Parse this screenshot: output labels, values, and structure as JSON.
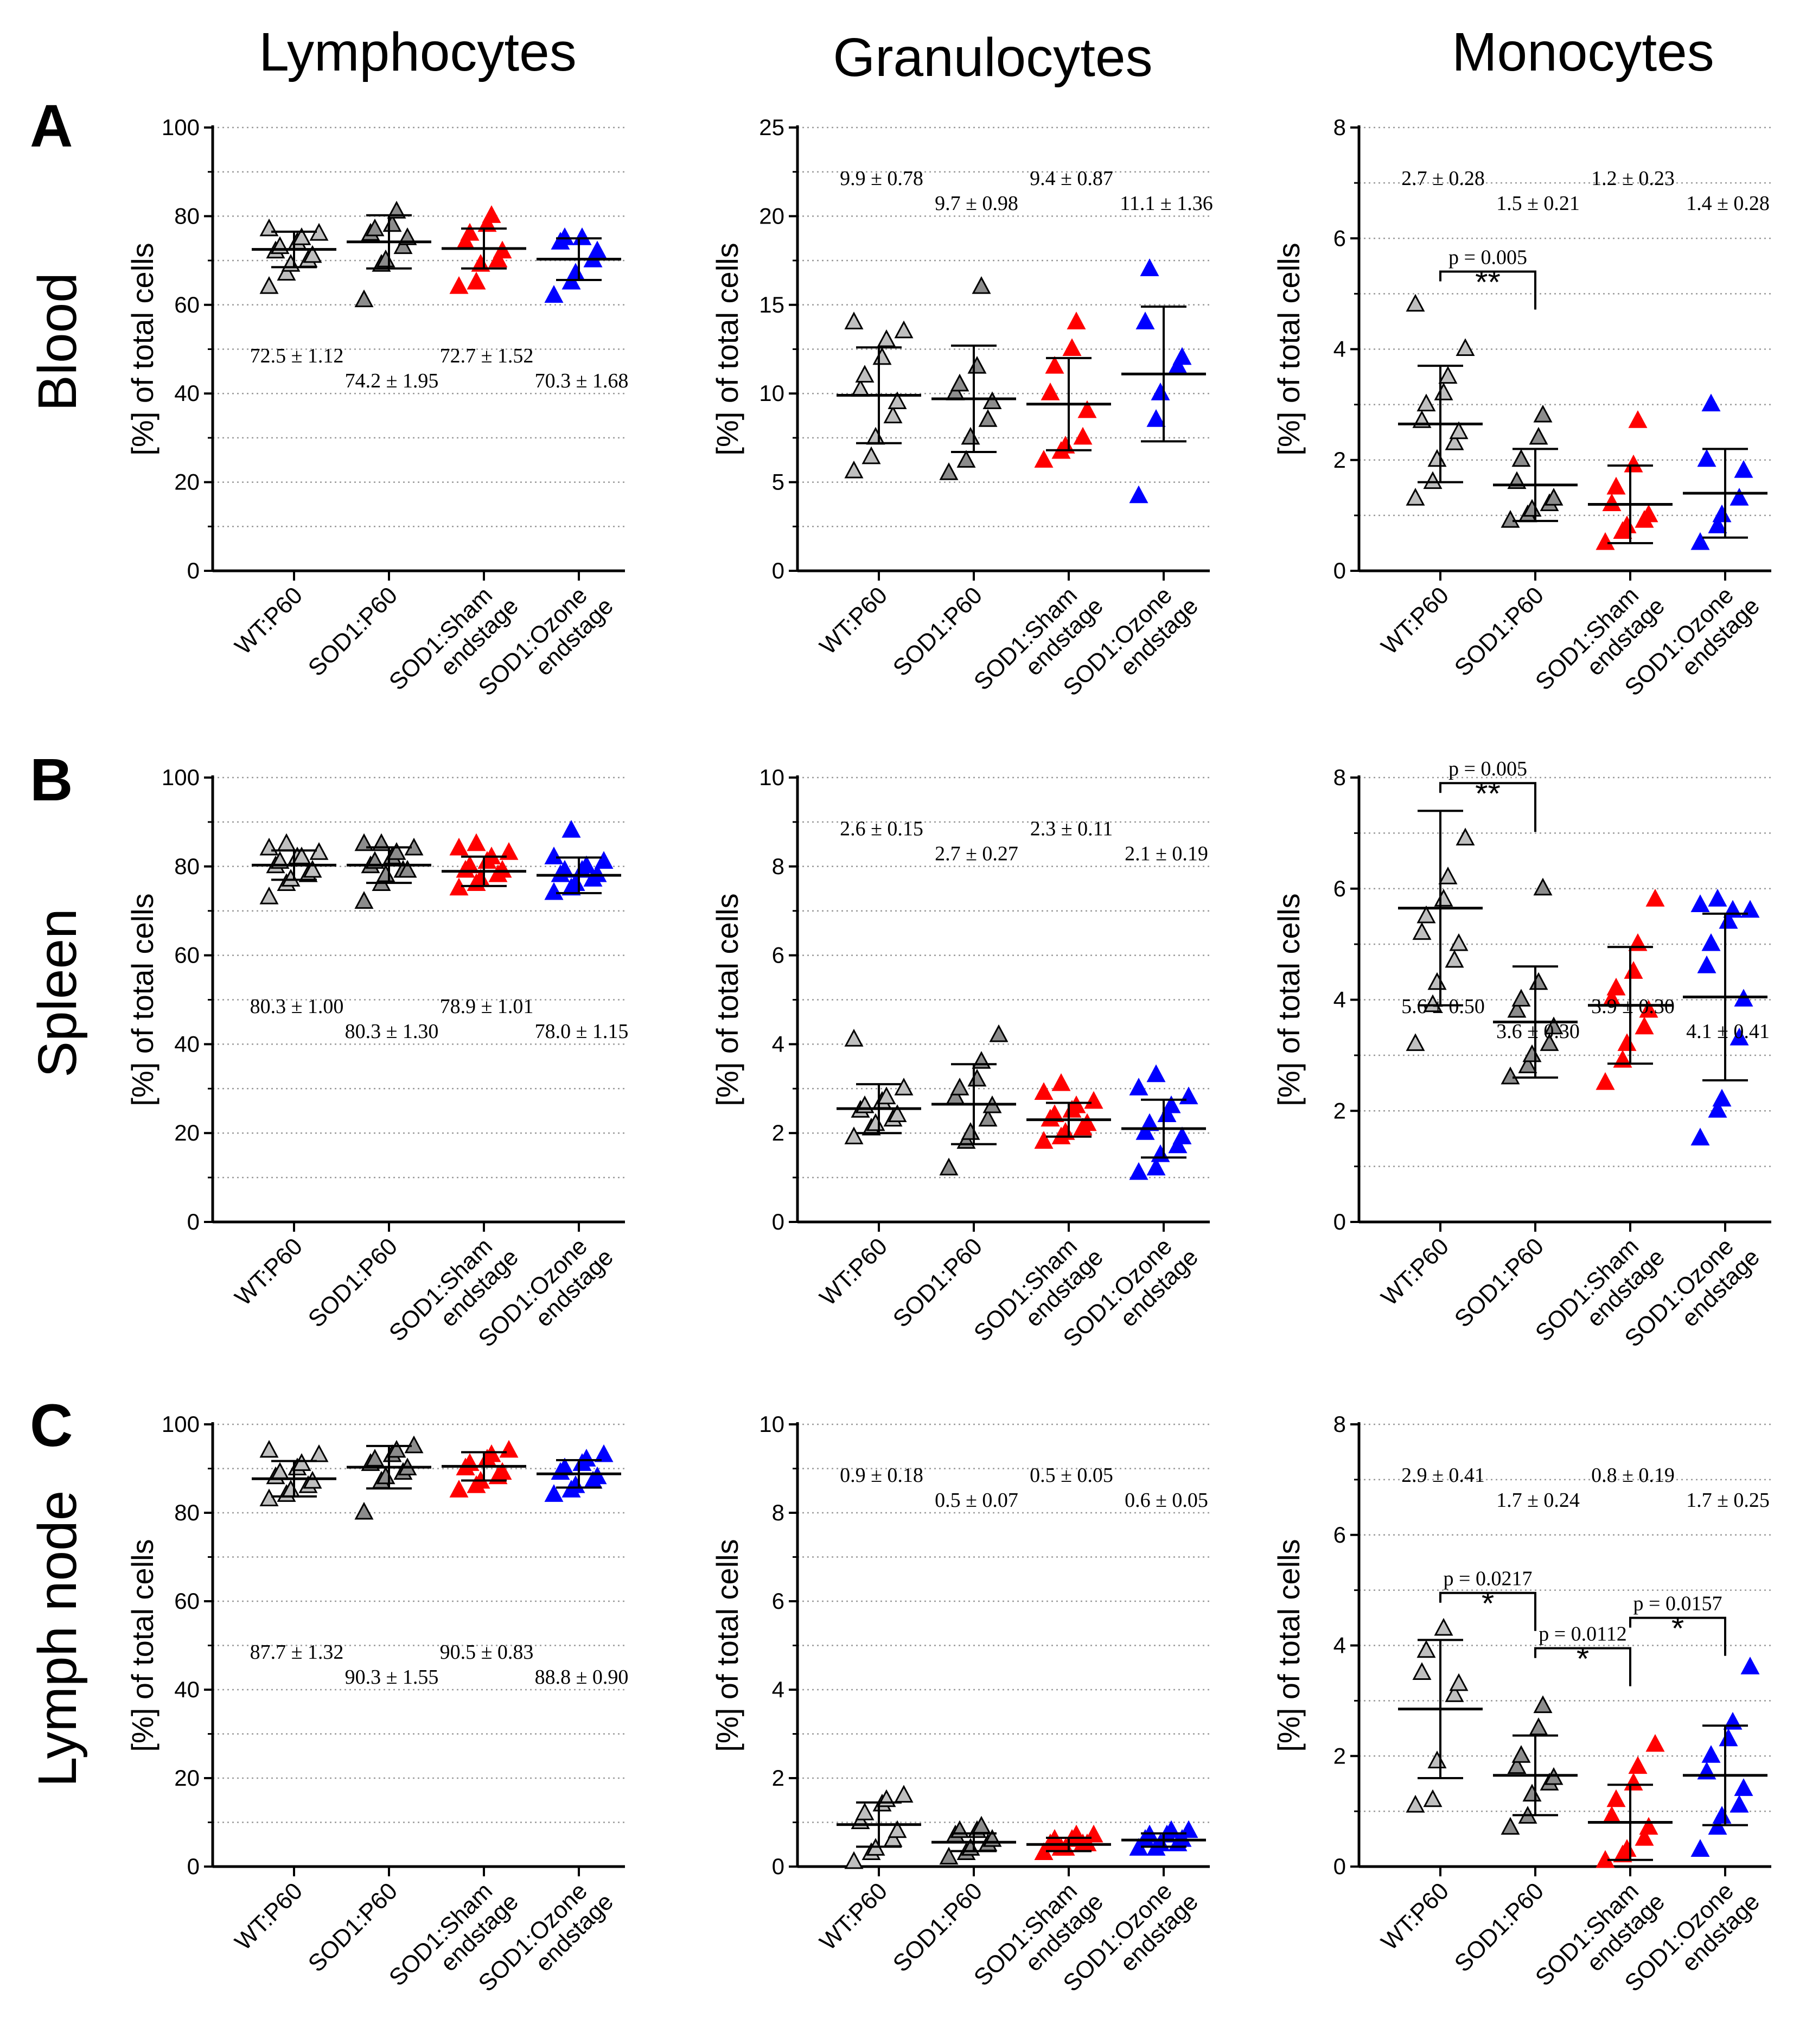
{
  "figure": {
    "columns": [
      "Lymphocytes",
      "Granulocytes",
      "Monocytes"
    ],
    "row_letters": [
      "A",
      "B",
      "C"
    ],
    "row_labels": [
      "Blood",
      "Spleen",
      "Lymph node"
    ],
    "ylabel": "[%] of total cells",
    "groups": [
      "WT:P60",
      "SOD1:P60",
      "SOD1:Sham endstage",
      "SOD1:Ozone endstage"
    ],
    "group_label_lines": [
      [
        "WT:P60"
      ],
      [
        "SOD1:P60"
      ],
      [
        "SOD1:Sham",
        "endstage"
      ],
      [
        "SOD1:Ozone",
        "endstage"
      ]
    ],
    "colors": {
      "wt": "#bfbfbf",
      "sod1": "#8c8c8c",
      "sham": "#ff0000",
      "ozone": "#0000ff",
      "grid": "#9a9a9a",
      "axis": "#000000"
    }
  },
  "chart_data": [
    {
      "id": "blood-lymphocytes",
      "type": "scatter",
      "row": 0,
      "col": 0,
      "title": "Lymphocytes",
      "ylabel": "[%] of total cells",
      "xlabel": "",
      "ylim": [
        0,
        100
      ],
      "yticks": [
        0,
        20,
        40,
        60,
        80,
        100
      ],
      "mean_label_anchor": "low",
      "series": [
        {
          "name": "WT:P60",
          "values": [
            64,
            67,
            69,
            70,
            71,
            72,
            73,
            74,
            75,
            76,
            77
          ],
          "mean": 72.5,
          "sd": 4.0
        },
        {
          "name": "SOD1:P60",
          "values": [
            61,
            69,
            70,
            73,
            75,
            76,
            77,
            78,
            81
          ],
          "mean": 74.2,
          "sd": 6.0
        },
        {
          "name": "SOD1:Sham endstage",
          "values": [
            64,
            65,
            69,
            70,
            72,
            74,
            76,
            78,
            80
          ],
          "mean": 72.7,
          "sd": 4.5
        },
        {
          "name": "SOD1:Ozone endstage",
          "values": [
            62,
            65,
            67,
            70,
            72,
            74,
            75,
            75
          ],
          "mean": 70.3,
          "sd": 4.7
        }
      ],
      "stat_labels": [
        "72.5 ± 1.12",
        "74.2 ± 1.95",
        "72.7 ± 1.52",
        "70.3 ± 1.68"
      ],
      "comparisons": []
    },
    {
      "id": "blood-granulocytes",
      "type": "scatter",
      "row": 0,
      "col": 1,
      "title": "Granulocytes",
      "ylabel": "[%] of total cells",
      "xlabel": "",
      "ylim": [
        0,
        25
      ],
      "yticks": [
        0,
        5,
        10,
        15,
        20,
        25
      ],
      "mean_label_anchor": "high",
      "series": [
        {
          "name": "WT:P60",
          "values": [
            5.6,
            6.4,
            7.5,
            8.7,
            9.5,
            10.2,
            11.0,
            12.0,
            13.0,
            13.5,
            14.0
          ],
          "mean": 9.9,
          "sd": 2.7
        },
        {
          "name": "SOD1:P60",
          "values": [
            5.5,
            6.2,
            7.5,
            8.5,
            9.5,
            10.0,
            10.5,
            11.5,
            16.0
          ],
          "mean": 9.7,
          "sd": 3.0
        },
        {
          "name": "SOD1:Sham endstage",
          "values": [
            6.2,
            6.7,
            7.0,
            7.5,
            9.0,
            10.0,
            11.5,
            12.5,
            14.0
          ],
          "mean": 9.4,
          "sd": 2.6
        },
        {
          "name": "SOD1:Ozone endstage",
          "values": [
            4.2,
            8.5,
            10.0,
            11.5,
            12.0,
            14.0,
            17.0
          ],
          "mean": 11.1,
          "sd": 3.8
        }
      ],
      "stat_labels": [
        "9.9 ± 0.78",
        "9.7 ± 0.98",
        "9.4 ± 0.87",
        "11.1 ± 1.36"
      ],
      "comparisons": []
    },
    {
      "id": "blood-monocytes",
      "type": "scatter",
      "row": 0,
      "col": 2,
      "title": "Monocytes",
      "ylabel": "[%] of total cells",
      "xlabel": "",
      "ylim": [
        0,
        8
      ],
      "yticks": [
        0,
        2,
        4,
        6,
        8
      ],
      "mean_label_anchor": "high",
      "series": [
        {
          "name": "WT:P60",
          "values": [
            1.3,
            1.6,
            2.0,
            2.3,
            2.5,
            2.7,
            3.0,
            3.2,
            3.5,
            4.0,
            4.8
          ],
          "mean": 2.65,
          "sd": 1.05
        },
        {
          "name": "SOD1:P60",
          "values": [
            0.9,
            1.0,
            1.1,
            1.2,
            1.3,
            1.6,
            2.0,
            2.4,
            2.8
          ],
          "mean": 1.55,
          "sd": 0.65
        },
        {
          "name": "SOD1:Sham endstage",
          "values": [
            0.5,
            0.7,
            0.8,
            0.9,
            1.0,
            1.2,
            1.5,
            1.9,
            2.7
          ],
          "mean": 1.2,
          "sd": 0.7
        },
        {
          "name": "SOD1:Ozone endstage",
          "values": [
            0.5,
            0.8,
            1.0,
            1.3,
            1.8,
            2.0,
            3.0
          ],
          "mean": 1.4,
          "sd": 0.8
        }
      ],
      "stat_labels": [
        "2.7 ± 0.28",
        "1.5 ± 0.21",
        "1.2 ± 0.23",
        "1.4 ± 0.28"
      ],
      "comparisons": [
        {
          "from": 0,
          "to": 1,
          "y": 5.4,
          "p_label": "p = 0.005",
          "stars": "**"
        }
      ]
    },
    {
      "id": "spleen-lymphocytes",
      "type": "scatter",
      "row": 1,
      "col": 0,
      "title": "Lymphocytes",
      "ylabel": "[%] of total cells",
      "xlabel": "",
      "ylim": [
        0,
        100
      ],
      "yticks": [
        0,
        20,
        40,
        60,
        80,
        100
      ],
      "mean_label_anchor": "low",
      "series": [
        {
          "name": "WT:P60",
          "values": [
            73,
            76,
            77,
            78,
            79,
            80,
            81,
            82,
            82,
            83,
            84,
            85
          ],
          "mean": 80.3,
          "sd": 3.3
        },
        {
          "name": "SOD1:P60",
          "values": [
            72,
            76,
            78,
            79,
            79,
            80,
            81,
            82,
            83,
            84,
            85,
            85
          ],
          "mean": 80.3,
          "sd": 4.0
        },
        {
          "name": "SOD1:Sham endstage",
          "values": [
            75,
            76,
            77,
            78,
            79,
            79,
            80,
            81,
            82,
            83,
            84,
            85
          ],
          "mean": 78.9,
          "sd": 3.3
        },
        {
          "name": "SOD1:Ozone endstage",
          "values": [
            74,
            75,
            76,
            77,
            78,
            78,
            79,
            79,
            80,
            81,
            82,
            88
          ],
          "mean": 78.0,
          "sd": 4.0
        }
      ],
      "stat_labels": [
        "80.3 ± 1.00",
        "80.3 ± 1.30",
        "78.9 ± 1.01",
        "78.0 ± 1.15"
      ],
      "comparisons": []
    },
    {
      "id": "spleen-granulocytes",
      "type": "scatter",
      "row": 1,
      "col": 1,
      "title": "Granulocytes",
      "ylabel": "[%] of total cells",
      "xlabel": "",
      "ylim": [
        0,
        10
      ],
      "yticks": [
        0,
        2,
        4,
        6,
        8,
        10
      ],
      "mean_label_anchor": "high",
      "series": [
        {
          "name": "WT:P60",
          "values": [
            1.9,
            2.1,
            2.2,
            2.3,
            2.4,
            2.5,
            2.6,
            2.7,
            2.8,
            3.0,
            4.1
          ],
          "mean": 2.55,
          "sd": 0.55
        },
        {
          "name": "SOD1:P60",
          "values": [
            1.2,
            1.8,
            2.0,
            2.3,
            2.6,
            2.8,
            3.0,
            3.2,
            3.6,
            4.2
          ],
          "mean": 2.65,
          "sd": 0.9
        },
        {
          "name": "SOD1:Sham endstage",
          "values": [
            1.8,
            1.9,
            2.0,
            2.1,
            2.2,
            2.3,
            2.4,
            2.5,
            2.6,
            2.7,
            2.9,
            3.1
          ],
          "mean": 2.3,
          "sd": 0.38
        },
        {
          "name": "SOD1:Ozone endstage",
          "values": [
            1.1,
            1.2,
            1.5,
            1.7,
            1.9,
            2.0,
            2.2,
            2.4,
            2.6,
            2.8,
            3.0,
            3.3
          ],
          "mean": 2.1,
          "sd": 0.65
        }
      ],
      "stat_labels": [
        "2.6 ± 0.15",
        "2.7 ± 0.27",
        "2.3 ± 0.11",
        "2.1 ± 0.19"
      ],
      "comparisons": []
    },
    {
      "id": "spleen-monocytes",
      "type": "scatter",
      "row": 1,
      "col": 2,
      "title": "Monocytes",
      "ylabel": "[%] of total cells",
      "xlabel": "",
      "ylim": [
        0,
        8
      ],
      "yticks": [
        0,
        2,
        4,
        6,
        8
      ],
      "mean_label_anchor": "low",
      "series": [
        {
          "name": "WT:P60",
          "values": [
            3.2,
            3.9,
            4.3,
            4.7,
            5.0,
            5.2,
            5.5,
            5.8,
            6.2,
            6.9
          ],
          "mean": 5.65,
          "sd": 1.75
        },
        {
          "name": "SOD1:P60",
          "values": [
            2.6,
            2.8,
            3.0,
            3.2,
            3.5,
            3.8,
            4.0,
            4.3,
            6.0
          ],
          "mean": 3.6,
          "sd": 1.0
        },
        {
          "name": "SOD1:Sham endstage",
          "values": [
            2.5,
            2.9,
            3.2,
            3.5,
            3.8,
            4.0,
            4.2,
            4.5,
            5.0,
            5.8
          ],
          "mean": 3.9,
          "sd": 1.05
        },
        {
          "name": "SOD1:Ozone endstage",
          "values": [
            1.5,
            2.0,
            2.2,
            3.3,
            4.0,
            4.6,
            5.0,
            5.4,
            5.6,
            5.6,
            5.7,
            5.8
          ],
          "mean": 4.05,
          "sd": 1.5
        }
      ],
      "stat_labels": [
        "5.6 ± 0.50",
        "3.6 ± 0.30",
        "3.9 ± 0.30",
        "4.1 ± 0.41"
      ],
      "comparisons": [
        {
          "from": 0,
          "to": 1,
          "y": 7.9,
          "p_label": "p = 0.005",
          "stars": "**"
        }
      ]
    },
    {
      "id": "lymphnode-lymphocytes",
      "type": "scatter",
      "row": 2,
      "col": 0,
      "title": "Lymphocytes",
      "ylabel": "[%] of total cells",
      "xlabel": "",
      "ylim": [
        0,
        100
      ],
      "yticks": [
        0,
        20,
        40,
        60,
        80,
        100
      ],
      "mean_label_anchor": "low",
      "series": [
        {
          "name": "WT:P60",
          "values": [
            83,
            84,
            85,
            86,
            87,
            88,
            89,
            90,
            91,
            93,
            94
          ],
          "mean": 87.7,
          "sd": 4.0
        },
        {
          "name": "SOD1:P60",
          "values": [
            80,
            87,
            88,
            89,
            90,
            91,
            92,
            93,
            94,
            95
          ],
          "mean": 90.3,
          "sd": 4.8
        },
        {
          "name": "SOD1:Sham endstage",
          "values": [
            85,
            86,
            87,
            88,
            89,
            90,
            91,
            92,
            93,
            94
          ],
          "mean": 90.5,
          "sd": 3.2
        },
        {
          "name": "SOD1:Ozone endstage",
          "values": [
            84,
            85,
            86,
            87,
            88,
            89,
            90,
            91,
            92,
            93
          ],
          "mean": 88.8,
          "sd": 3.1
        }
      ],
      "stat_labels": [
        "87.7 ± 1.32",
        "90.3 ± 1.55",
        "90.5 ± 0.83",
        "88.8 ± 0.90"
      ],
      "comparisons": []
    },
    {
      "id": "lymphnode-granulocytes",
      "type": "scatter",
      "row": 2,
      "col": 1,
      "title": "Granulocytes",
      "ylabel": "[%] of total cells",
      "xlabel": "",
      "ylim": [
        0,
        10
      ],
      "yticks": [
        0,
        2,
        4,
        6,
        8,
        10
      ],
      "mean_label_anchor": "high",
      "series": [
        {
          "name": "WT:P60",
          "values": [
            0.1,
            0.3,
            0.4,
            0.6,
            0.8,
            1.0,
            1.2,
            1.4,
            1.5,
            1.6
          ],
          "mean": 0.95,
          "sd": 0.5
        },
        {
          "name": "SOD1:P60",
          "values": [
            0.2,
            0.3,
            0.4,
            0.5,
            0.6,
            0.7,
            0.8,
            0.8,
            0.9
          ],
          "mean": 0.55,
          "sd": 0.2
        },
        {
          "name": "SOD1:Sham endstage",
          "values": [
            0.3,
            0.4,
            0.4,
            0.5,
            0.5,
            0.5,
            0.6,
            0.6,
            0.7,
            0.7
          ],
          "mean": 0.5,
          "sd": 0.15
        },
        {
          "name": "SOD1:Ozone endstage",
          "values": [
            0.4,
            0.4,
            0.5,
            0.5,
            0.6,
            0.6,
            0.7,
            0.7,
            0.8,
            0.8
          ],
          "mean": 0.6,
          "sd": 0.15
        }
      ],
      "stat_labels": [
        "0.9 ± 0.18",
        "0.5 ± 0.07",
        "0.5 ± 0.05",
        "0.6 ± 0.05"
      ],
      "comparisons": []
    },
    {
      "id": "lymphnode-monocytes",
      "type": "scatter",
      "row": 2,
      "col": 2,
      "title": "Monocytes",
      "ylabel": "[%] of total cells",
      "xlabel": "",
      "ylim": [
        0,
        8
      ],
      "yticks": [
        0,
        2,
        4,
        6,
        8
      ],
      "mean_label_anchor": "high",
      "series": [
        {
          "name": "WT:P60",
          "values": [
            1.1,
            1.2,
            1.9,
            3.1,
            3.3,
            3.5,
            3.9,
            4.3
          ],
          "mean": 2.85,
          "sd": 1.25
        },
        {
          "name": "SOD1:P60",
          "values": [
            0.7,
            0.9,
            1.3,
            1.5,
            1.6,
            1.8,
            2.0,
            2.5,
            2.9
          ],
          "mean": 1.65,
          "sd": 0.72
        },
        {
          "name": "SOD1:Sham endstage",
          "values": [
            0.1,
            0.2,
            0.3,
            0.5,
            0.7,
            0.9,
            1.2,
            1.5,
            1.8,
            2.2
          ],
          "mean": 0.8,
          "sd": 0.68
        },
        {
          "name": "SOD1:Ozone endstage",
          "values": [
            0.3,
            0.7,
            0.9,
            1.1,
            1.4,
            1.7,
            2.0,
            2.3,
            2.6,
            3.6
          ],
          "mean": 1.65,
          "sd": 0.9
        }
      ],
      "stat_labels": [
        "2.9 ± 0.41",
        "1.7 ± 0.24",
        "0.8 ± 0.19",
        "1.7 ± 0.25"
      ],
      "comparisons": [
        {
          "from": 0,
          "to": 1,
          "y": 4.95,
          "p_label": "p = 0.0217",
          "stars": "*"
        },
        {
          "from": 1,
          "to": 2,
          "y": 3.95,
          "p_label": "p = 0.0112",
          "stars": "*"
        },
        {
          "from": 2,
          "to": 3,
          "y": 4.5,
          "p_label": "p = 0.0157",
          "stars": "*"
        }
      ]
    }
  ]
}
